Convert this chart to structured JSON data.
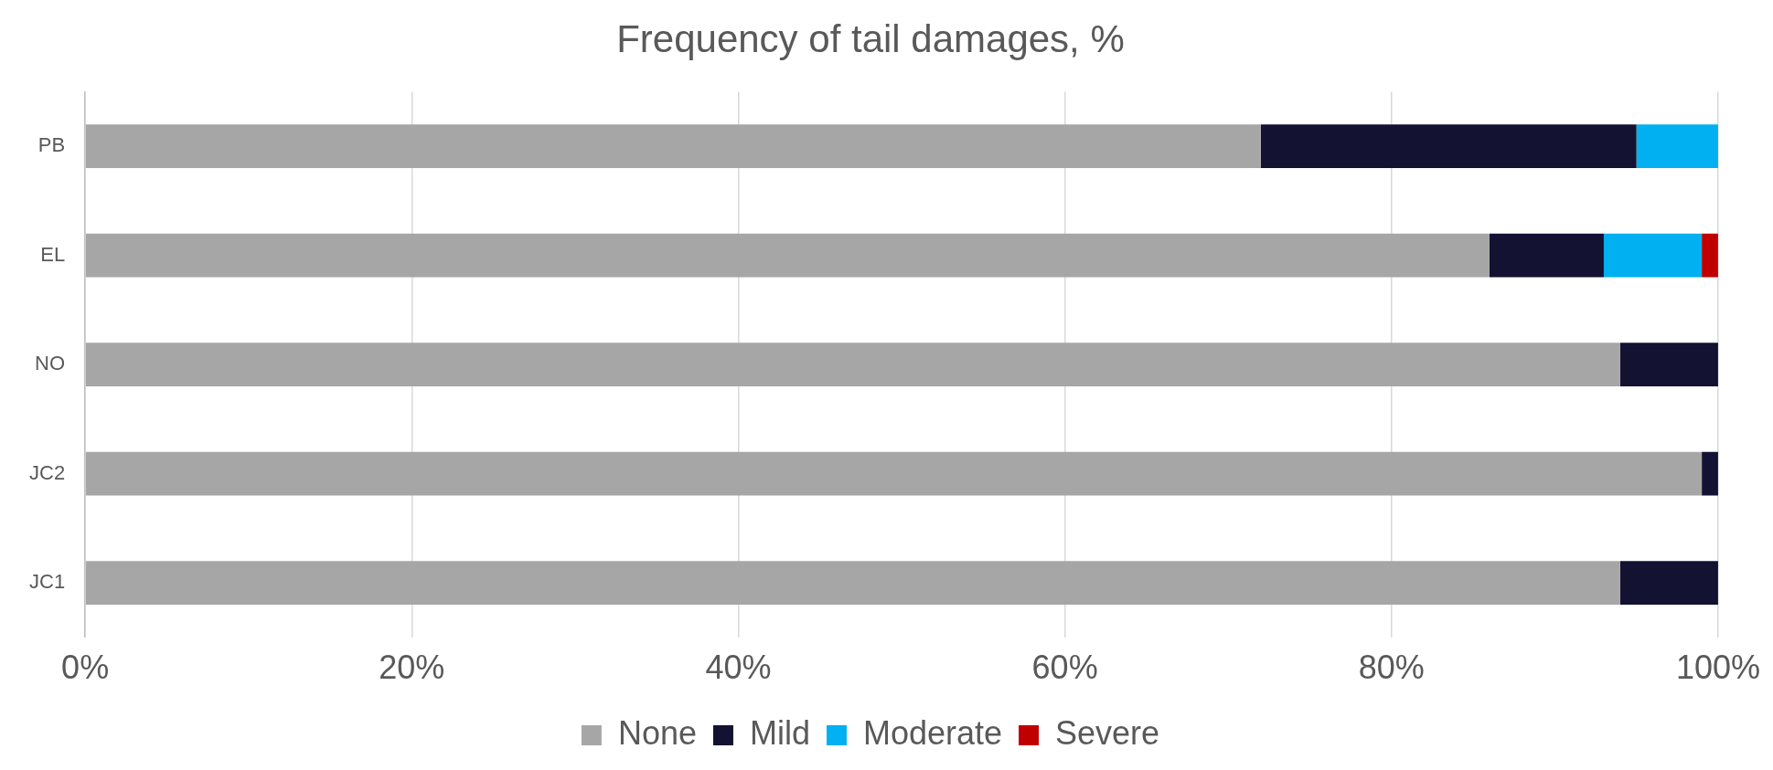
{
  "chart_data": {
    "type": "bar",
    "title": "Frequency of tail damages, %",
    "orientation": "horizontal",
    "stacked": true,
    "categories": [
      "PB",
      "EL",
      "NO",
      "JC2",
      "JC1"
    ],
    "series": [
      {
        "name": "None",
        "color": "#a6a6a6",
        "values": [
          72,
          86,
          94,
          99,
          94
        ]
      },
      {
        "name": "Mild",
        "color": "#141233",
        "values": [
          23,
          7,
          6,
          1,
          6
        ]
      },
      {
        "name": "Moderate",
        "color": "#00b0f0",
        "values": [
          5,
          6,
          0,
          0,
          0
        ]
      },
      {
        "name": "Severe",
        "color": "#c00000",
        "values": [
          0,
          1,
          0,
          0,
          0
        ]
      }
    ],
    "xlim": [
      0,
      100
    ],
    "xticks": [
      {
        "value": 0,
        "label": "0%"
      },
      {
        "value": 20,
        "label": "20%"
      },
      {
        "value": 40,
        "label": "40%"
      },
      {
        "value": 60,
        "label": "60%"
      },
      {
        "value": 80,
        "label": "80%"
      },
      {
        "value": 100,
        "label": "100%"
      }
    ],
    "grid": "x",
    "legend": "bottom"
  }
}
